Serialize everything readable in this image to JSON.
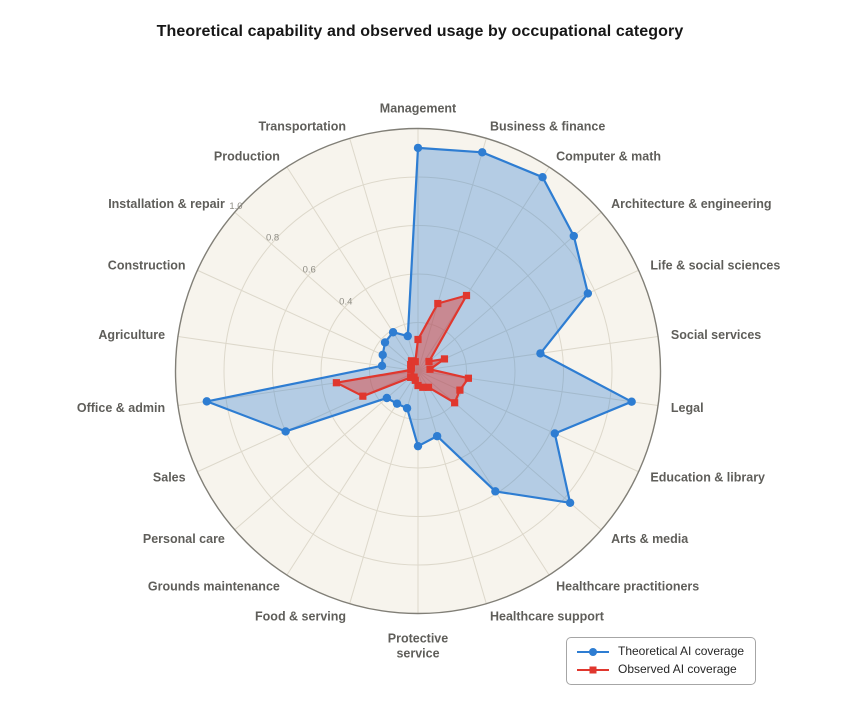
{
  "title": "Theoretical capability and observed usage by occupational category",
  "colors": {
    "page_background": "#ffffff",
    "plot_background": "#f7f4ed",
    "grid_line": "#ddd8cb",
    "outer_ring": "#817f77",
    "tick_label": "#8f8d85",
    "category_label": "#5f5e5a",
    "theoretical_line": "#2e7dd2",
    "theoretical_fill": "rgba(46,125,210,0.33)",
    "observed_line": "#e0372e",
    "observed_fill": "rgba(224,55,46,0.45)"
  },
  "chart_data": {
    "type": "radar",
    "categories": [
      "Management",
      "Business & finance",
      "Computer & math",
      "Architecture & engineering",
      "Life & social sciences",
      "Social services",
      "Legal",
      "Education & library",
      "Arts & media",
      "Healthcare practitioners",
      "Healthcare support",
      "Protective service",
      "Food & serving",
      "Grounds maintenance",
      "Personal care",
      "Sales",
      "Office & admin",
      "Agriculture",
      "Construction",
      "Installation & repair",
      "Production",
      "Transportation"
    ],
    "label_wrap": {
      "Protective service": [
        "Protective",
        "service"
      ]
    },
    "series": [
      {
        "name": "Theoretical AI coverage",
        "marker": "circle",
        "values": [
          0.92,
          0.94,
          0.95,
          0.85,
          0.77,
          0.51,
          0.89,
          0.62,
          0.83,
          0.59,
          0.28,
          0.31,
          0.16,
          0.16,
          0.17,
          0.6,
          0.88,
          0.15,
          0.16,
          0.18,
          0.19,
          0.15
        ]
      },
      {
        "name": "Observed AI coverage",
        "marker": "square",
        "values": [
          0.13,
          0.29,
          0.37,
          0.06,
          0.12,
          0.05,
          0.21,
          0.19,
          0.2,
          0.08,
          0.07,
          0.06,
          0.04,
          0.03,
          0.04,
          0.25,
          0.34,
          0.03,
          0.03,
          0.04,
          0.05,
          0.04
        ]
      }
    ],
    "radial_ticks": {
      "labels": [
        "0.4",
        "0.6",
        "0.8",
        "1.0"
      ],
      "values": [
        0.4,
        0.6,
        0.8,
        1.0
      ]
    },
    "grid_circle_values": [
      0.2,
      0.4,
      0.6,
      0.8
    ],
    "rmin": 0,
    "rmax": 1.0,
    "grid": true,
    "tick_label_angle_deg": 311,
    "legend_position": "bottom-right"
  },
  "legend": {
    "items": [
      {
        "label": "Theoretical AI coverage",
        "marker": "line-circle"
      },
      {
        "label": "Observed AI coverage",
        "marker": "line-square"
      }
    ]
  }
}
